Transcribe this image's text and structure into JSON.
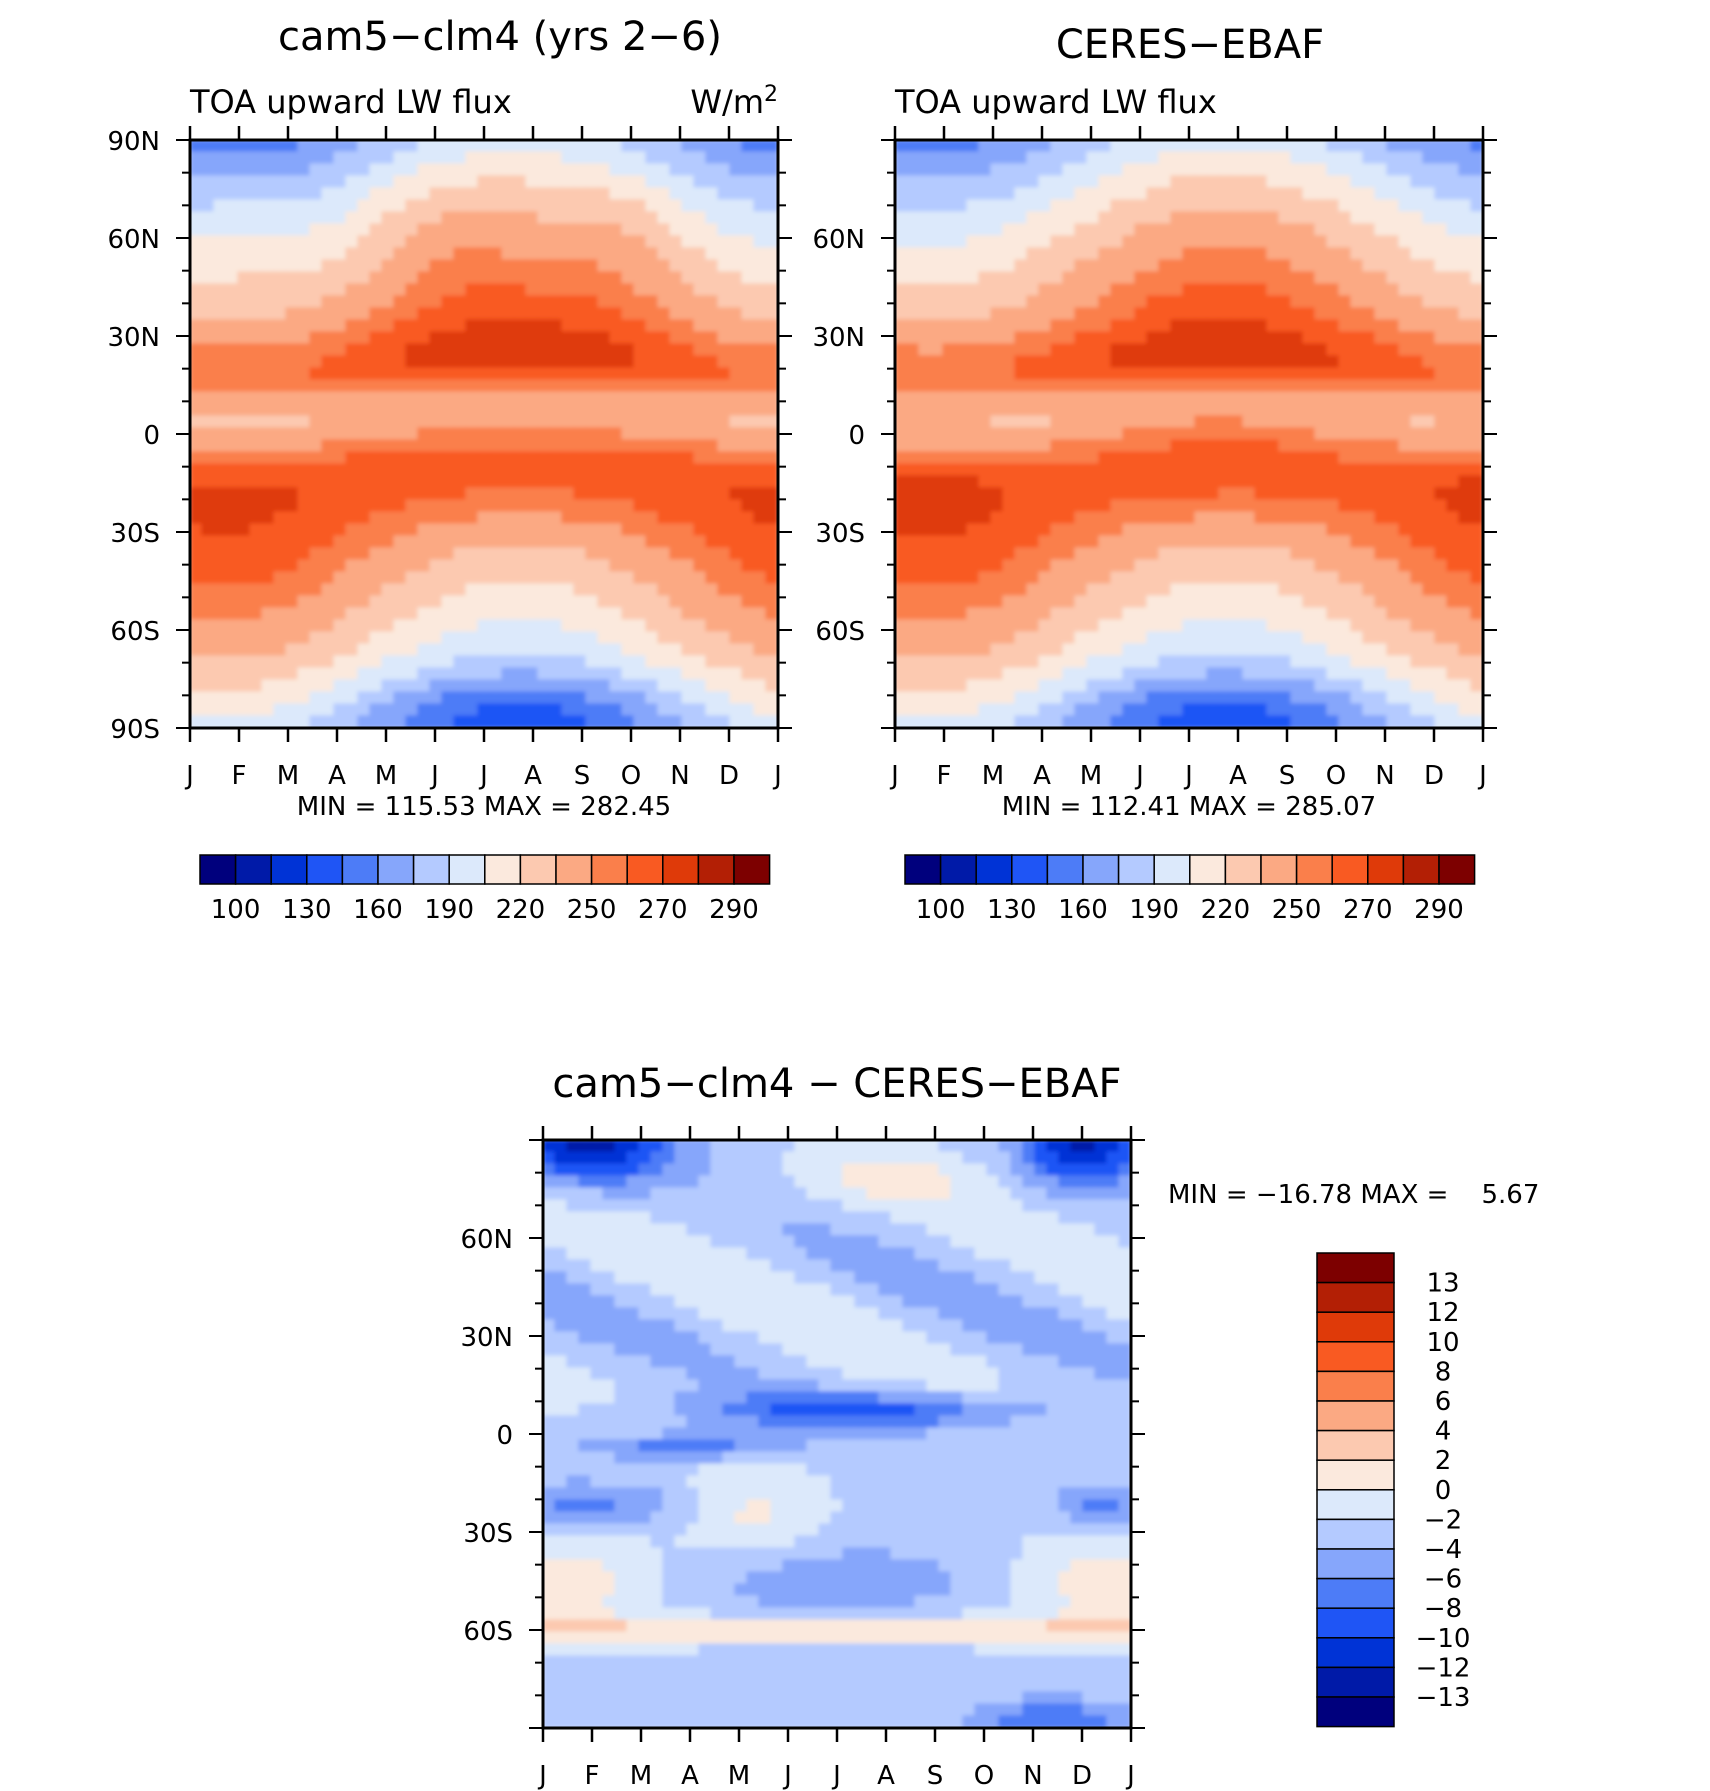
{
  "chart_data": [
    {
      "type": "heatmap",
      "id": "model",
      "title": "cam5−clm4 (yrs 2−6)",
      "left_subtitle": "TOA upward LW flux",
      "right_subtitle": "W/m",
      "units_superscript": "2",
      "x_tick_labels": [
        "J",
        "F",
        "M",
        "A",
        "M",
        "J",
        "J",
        "A",
        "S",
        "O",
        "N",
        "D",
        "J"
      ],
      "y_tick_labels": [
        "90N",
        "60N",
        "30N",
        "0",
        "30S",
        "60S",
        "90S"
      ],
      "ylim": [
        -90,
        90
      ],
      "stats": "MIN = 115.53 MAX = 282.45",
      "min": 115.53,
      "max": 282.45,
      "colorbar_levels": [
        "100",
        "130",
        "160",
        "190",
        "220",
        "250",
        "270",
        "290"
      ],
      "field": "TOA upward longwave flux, zonal mean by month"
    },
    {
      "type": "heatmap",
      "id": "obs",
      "title": "CERES−EBAF",
      "left_subtitle": "TOA upward LW flux",
      "x_tick_labels": [
        "J",
        "F",
        "M",
        "A",
        "M",
        "J",
        "J",
        "A",
        "S",
        "O",
        "N",
        "D",
        "J"
      ],
      "y_tick_labels": [
        "60N",
        "30N",
        "0",
        "30S",
        "60S"
      ],
      "ylim": [
        -90,
        90
      ],
      "stats": "MIN = 112.41 MAX = 285.07",
      "min": 112.41,
      "max": 285.07,
      "colorbar_levels": [
        "100",
        "130",
        "160",
        "190",
        "220",
        "250",
        "270",
        "290"
      ],
      "field": "TOA upward longwave flux, zonal mean by month"
    },
    {
      "type": "heatmap",
      "id": "diff",
      "title": "cam5−clm4 − CERES−EBAF",
      "x_tick_labels": [
        "J",
        "F",
        "M",
        "A",
        "M",
        "J",
        "J",
        "A",
        "S",
        "O",
        "N",
        "D",
        "J"
      ],
      "y_tick_labels": [
        "60N",
        "30N",
        "0",
        "30S",
        "60S"
      ],
      "ylim": [
        -90,
        90
      ],
      "stats": "MIN = −16.78 MAX =    5.67",
      "min": -16.78,
      "max": 5.67,
      "colorbar_levels": [
        "13",
        "12",
        "10",
        "8",
        "6",
        "4",
        "2",
        "0",
        "−2",
        "−4",
        "−6",
        "−8",
        "−10",
        "−12",
        "−13"
      ],
      "field": "model minus observations"
    }
  ],
  "colors": {
    "sequential": [
      "#00007d",
      "#001aa8",
      "#0033d6",
      "#1f55f5",
      "#4d7cf7",
      "#86a6fb",
      "#b4caff",
      "#dce9fb",
      "#fbe9dd",
      "#fcc9b0",
      "#fba983",
      "#fa7f4b",
      "#f95a22",
      "#df3a09",
      "#b31f05",
      "#7d0000"
    ],
    "difference": [
      "#00007d",
      "#001aa8",
      "#0033d6",
      "#1f55f5",
      "#4d7cf7",
      "#86a6fb",
      "#b4caff",
      "#dce9fb",
      "#fbe9dd",
      "#fcc9b0",
      "#fba983",
      "#fa7f4b",
      "#f95a22",
      "#df3a09",
      "#b31f05",
      "#7d0000"
    ]
  }
}
